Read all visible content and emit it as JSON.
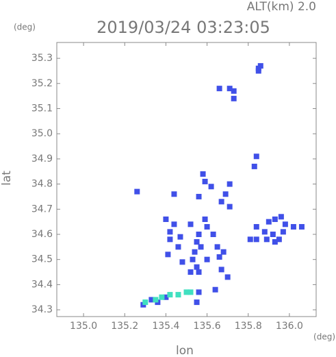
{
  "chart_data": {
    "type": "scatter",
    "title": "2019/03/24 03:23:05",
    "annotation": "ALT(km) 2.0",
    "y_unit": "(deg)",
    "x_unit": "(deg)",
    "x_label": "lon",
    "y_label": "lat",
    "xlim": [
      134.87,
      136.13
    ],
    "ylim": [
      34.273,
      35.363
    ],
    "xticks": [
      {
        "value": 135,
        "label": "135.0"
      },
      135.2,
      135.4,
      135.6,
      135.8,
      {
        "value": 136,
        "label": "136.0"
      }
    ],
    "yticks": [
      34.3,
      34.4,
      34.5,
      34.6,
      34.7,
      34.8,
      34.9,
      {
        "value": 35,
        "label": "35.0"
      },
      35.1,
      35.2,
      35.3
    ],
    "series": [
      {
        "color": "#4050e8",
        "x": [
          135.85,
          135.86,
          135.85,
          135.66,
          135.71,
          135.73,
          135.73,
          135.84,
          135.83,
          135.58,
          135.59,
          135.62,
          135.71,
          135.69,
          135.26,
          135.44,
          135.56,
          135.67,
          135.71,
          135.4,
          135.44,
          135.52,
          135.59,
          135.6,
          135.56,
          135.55,
          135.54,
          135.53,
          135.57,
          135.6,
          135.55,
          135.42,
          135.47,
          135.42,
          135.46,
          135.41,
          135.48,
          135.52,
          135.56,
          135.63,
          135.65,
          135.68,
          135.66,
          135.67,
          135.7,
          135.64,
          135.9,
          135.93,
          135.96,
          135.98,
          135.88,
          135.92,
          135.95,
          135.89,
          135.93,
          135.97,
          136.02,
          136.06,
          135.84,
          135.81,
          135.84,
          135.29,
          135.33,
          135.36,
          135.4,
          135.55,
          135.56
        ],
        "values": [
          35.26,
          35.27,
          35.25,
          35.18,
          35.18,
          35.17,
          35.14,
          34.91,
          34.87,
          34.84,
          34.81,
          34.79,
          34.8,
          34.76,
          34.77,
          34.76,
          34.75,
          34.73,
          34.71,
          34.66,
          34.64,
          34.64,
          34.66,
          34.63,
          34.6,
          34.57,
          34.53,
          34.5,
          34.55,
          34.5,
          34.47,
          34.61,
          34.59,
          34.58,
          34.55,
          34.52,
          34.49,
          34.45,
          34.45,
          34.6,
          34.55,
          34.53,
          34.51,
          34.46,
          34.43,
          34.38,
          34.65,
          34.66,
          34.67,
          34.64,
          34.61,
          34.6,
          34.58,
          34.58,
          34.57,
          34.61,
          34.63,
          34.63,
          34.58,
          34.58,
          34.63,
          34.32,
          34.34,
          34.33,
          34.35,
          34.33,
          34.37
        ]
      },
      {
        "color": "#40e0c0",
        "x": [
          135.3,
          135.35,
          135.38,
          135.42,
          135.46,
          135.5,
          135.52
        ],
        "values": [
          34.33,
          34.34,
          34.35,
          34.36,
          34.36,
          34.37,
          34.37
        ]
      }
    ]
  }
}
